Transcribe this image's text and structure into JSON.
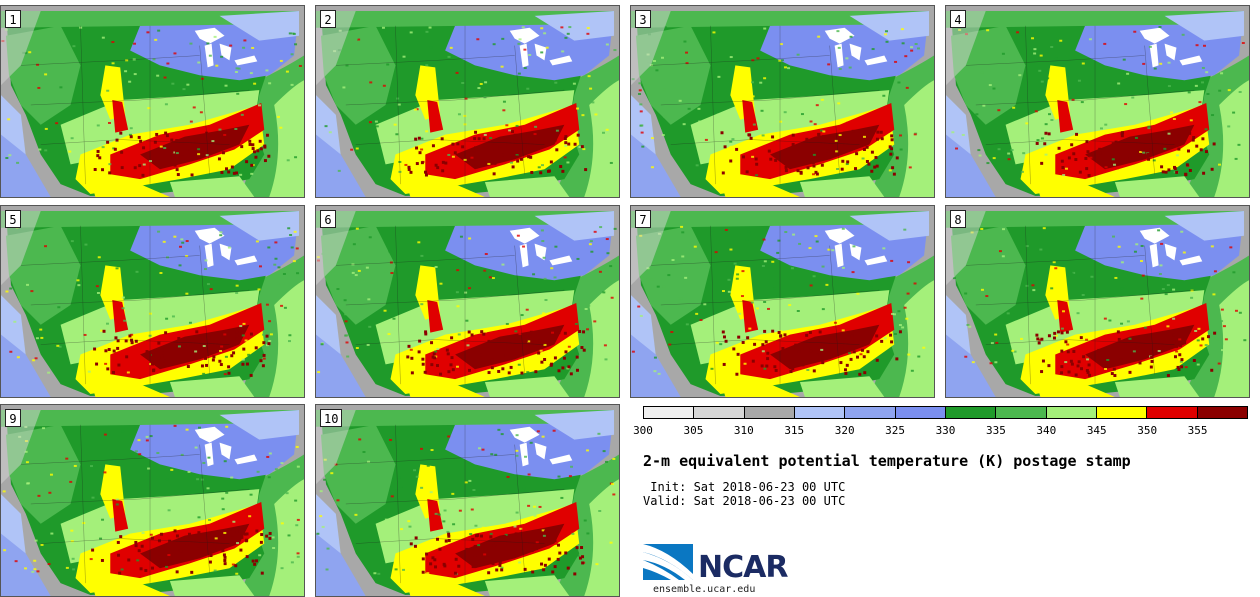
{
  "panels": [
    {
      "label": "1"
    },
    {
      "label": "2"
    },
    {
      "label": "3"
    },
    {
      "label": "4"
    },
    {
      "label": "5"
    },
    {
      "label": "6"
    },
    {
      "label": "7"
    },
    {
      "label": "8"
    },
    {
      "label": "9"
    },
    {
      "label": "10"
    }
  ],
  "colorbar": {
    "colors": [
      "#efefef",
      "#d6d6d6",
      "#a8a8a8",
      "#b0c4f7",
      "#8fa4f0",
      "#7b8ff0",
      "#1f9a2a",
      "#4cb84f",
      "#a4f07a",
      "#ffff00",
      "#e00000",
      "#8b0000"
    ],
    "ticks": [
      "300",
      "305",
      "310",
      "315",
      "320",
      "325",
      "330",
      "335",
      "340",
      "345",
      "350",
      "355"
    ]
  },
  "title": "2-m equivalent potential temperature (K) postage stamp",
  "init": " Init: Sat 2018-06-23 00 UTC",
  "valid": "Valid: Sat 2018-06-23 00 UTC",
  "logo": {
    "name": "NCAR",
    "url": "ensemble.ucar.edu"
  }
}
